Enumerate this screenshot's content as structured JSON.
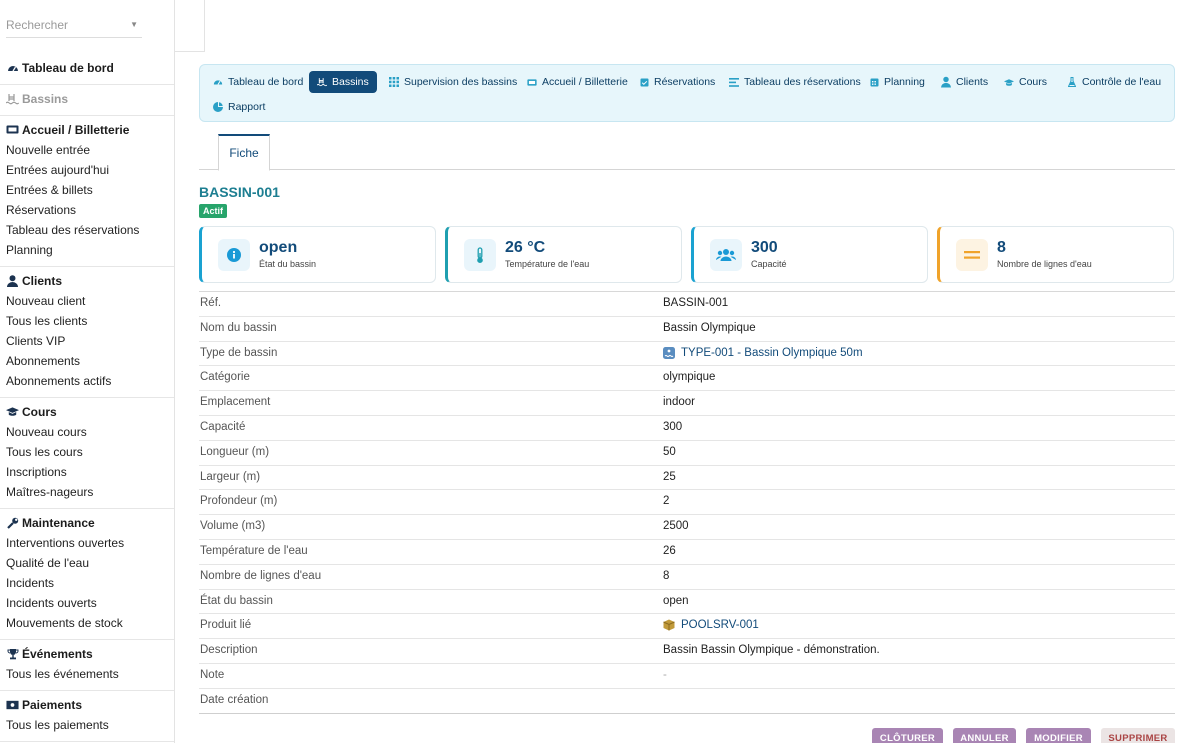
{
  "search": {
    "placeholder": "Rechercher"
  },
  "sidebar": {
    "sections": [
      {
        "title": "Tableau de bord",
        "icon": "dashboard-icon",
        "items": []
      },
      {
        "title": "Bassins",
        "icon": "pool-icon",
        "muted": true,
        "items": []
      },
      {
        "title": "Accueil / Billetterie",
        "icon": "ticket-icon",
        "items": [
          "Nouvelle entrée",
          "Entrées aujourd'hui",
          "Entrées & billets",
          "Réservations",
          "Tableau des réservations",
          "Planning"
        ]
      },
      {
        "title": "Clients",
        "icon": "user-icon",
        "items": [
          "Nouveau client",
          "Tous les clients",
          "Clients VIP",
          "Abonnements",
          "Abonnements actifs"
        ]
      },
      {
        "title": "Cours",
        "icon": "graduation-cap-icon",
        "items": [
          "Nouveau cours",
          "Tous les cours",
          "Inscriptions",
          "Maîtres-nageurs"
        ]
      },
      {
        "title": "Maintenance",
        "icon": "wrench-icon",
        "items": [
          "Interventions ouvertes",
          "Qualité de l'eau",
          "Incidents",
          "Incidents ouverts",
          "Mouvements de stock"
        ]
      },
      {
        "title": "Événements",
        "icon": "trophy-icon",
        "items": [
          "Tous les événements"
        ]
      },
      {
        "title": "Paiements",
        "icon": "money-icon",
        "items": [
          "Tous les paiements"
        ]
      }
    ]
  },
  "menu": {
    "items": [
      {
        "label": "Tableau de bord",
        "icon": "dashboard-icon"
      },
      {
        "label": "Bassins",
        "icon": "pool-icon",
        "active": true
      },
      {
        "label": "Supervision des bassins",
        "icon": "grid-icon"
      },
      {
        "label": "Accueil / Billetterie",
        "icon": "ticket-icon"
      },
      {
        "label": "Réservations",
        "icon": "calendar-check-icon"
      },
      {
        "label": "Tableau des réservations",
        "icon": "list-icon"
      },
      {
        "label": "Planning",
        "icon": "calendar-icon"
      },
      {
        "label": "Clients",
        "icon": "user-icon"
      },
      {
        "label": "Cours",
        "icon": "graduation-cap-icon"
      },
      {
        "label": "Contrôle de l'eau",
        "icon": "flask-icon"
      },
      {
        "label": "Rapport",
        "icon": "pie-chart-icon"
      }
    ]
  },
  "tabs": {
    "fiche": "Fiche"
  },
  "record": {
    "ref": "BASSIN-001",
    "status": "Actif"
  },
  "cards": [
    {
      "value": "open",
      "label": "État du bassin",
      "icon": "info-icon",
      "accent": "#1aa2d1"
    },
    {
      "value": "26 °C",
      "label": "Température de l'eau",
      "icon": "thermometer-icon",
      "accent": "#1f9fb0"
    },
    {
      "value": "300",
      "label": "Capacité",
      "icon": "users-icon",
      "accent": "#1aa2d1"
    },
    {
      "value": "8",
      "label": "Nombre de lignes d'eau",
      "icon": "lanes-icon",
      "accent": "#f0a32a"
    }
  ],
  "fields": [
    {
      "label": "Réf.",
      "value": "BASSIN-001"
    },
    {
      "label": "Nom du bassin",
      "value": "Bassin Olympique"
    },
    {
      "label": "Type de bassin",
      "value": "TYPE-001 - Bassin Olympique 50m",
      "link": true,
      "icon": "pool-type-icon"
    },
    {
      "label": "Catégorie",
      "value": "olympique"
    },
    {
      "label": "Emplacement",
      "value": "indoor"
    },
    {
      "label": "Capacité",
      "value": "300"
    },
    {
      "label": "Longueur (m)",
      "value": "50"
    },
    {
      "label": "Largeur (m)",
      "value": "25"
    },
    {
      "label": "Profondeur (m)",
      "value": "2"
    },
    {
      "label": "Volume (m3)",
      "value": "2500"
    },
    {
      "label": "Température de l'eau",
      "value": "26"
    },
    {
      "label": "Nombre de lignes d'eau",
      "value": "8"
    },
    {
      "label": "État du bassin",
      "value": "open"
    },
    {
      "label": "Produit lié",
      "value": "POOLSRV-001",
      "link": true,
      "icon": "box-icon"
    },
    {
      "label": "Description",
      "value": "Bassin Bassin Olympique - démonstration."
    },
    {
      "label": "Note",
      "value": "-",
      "muted": true
    },
    {
      "label": "Date création",
      "value": ""
    }
  ],
  "actions": {
    "close": "CLÔTURER",
    "cancel": "ANNULER",
    "modify": "MODIFIER",
    "delete": "SUPPRIMER"
  },
  "colors": {
    "primary": "#124b7a",
    "accent": "#1d7e91",
    "success": "#27a46b",
    "action": "#a985b4"
  }
}
